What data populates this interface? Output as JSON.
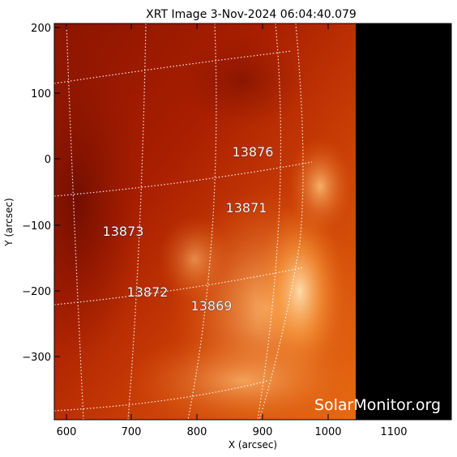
{
  "title": "XRT Image   3-Nov-2024 06:04:40.079",
  "x_axis": {
    "label": "X (arcsec)",
    "ticks": [
      "600",
      "700",
      "800",
      "900",
      "1000",
      "1100"
    ]
  },
  "y_axis": {
    "label": "Y (arcsec)",
    "ticks": [
      "200",
      "100",
      "0",
      "−100",
      "−200",
      "−300"
    ]
  },
  "active_regions": [
    {
      "id": "13876"
    },
    {
      "id": "13871"
    },
    {
      "id": "13873"
    },
    {
      "id": "13872"
    },
    {
      "id": "13869"
    }
  ],
  "watermark": "SolarMonitor.org",
  "colors": {
    "dark_red": "#7a0f00",
    "red": "#b32400",
    "orange": "#e0600d",
    "bright": "#ffd7a0",
    "off_disk": "#000000",
    "grid": "#ffffff"
  }
}
